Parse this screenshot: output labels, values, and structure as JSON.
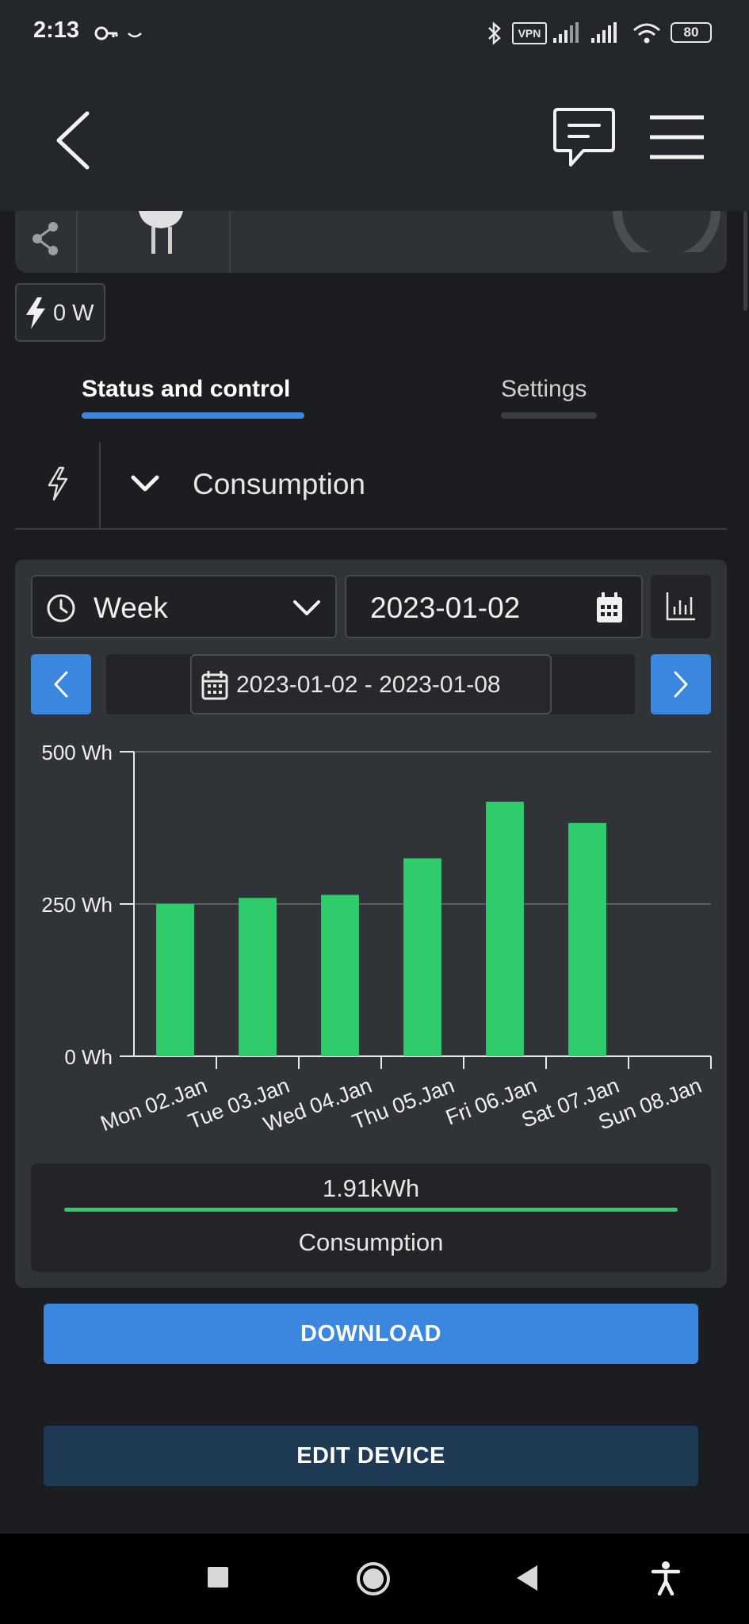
{
  "status_bar": {
    "time": "2:13",
    "vpn_label": "VPN",
    "battery": "80"
  },
  "device": {
    "power_reading": "0 W"
  },
  "tabs": [
    {
      "label": "Status and control",
      "active": true
    },
    {
      "label": "Settings",
      "active": false
    }
  ],
  "section": {
    "title": "Consumption"
  },
  "controls": {
    "period": "Week",
    "date": "2023-01-02",
    "range": "2023-01-02 - 2023-01-08"
  },
  "chart_data": {
    "type": "bar",
    "categories": [
      "Mon 02.Jan",
      "Tue 03.Jan",
      "Wed 04.Jan",
      "Thu 05.Jan",
      "Fri 06.Jan",
      "Sat 07.Jan",
      "Sun 08.Jan"
    ],
    "values": [
      250,
      260,
      265,
      325,
      418,
      383,
      0
    ],
    "ylim": [
      0,
      500
    ],
    "yticks": [
      0,
      250,
      500
    ],
    "ytick_labels": [
      "0 Wh",
      "250 Wh",
      "500 Wh"
    ],
    "grid": true,
    "bar_color": "#2ecc6b"
  },
  "summary": {
    "total": "1.91kWh",
    "label": "Consumption"
  },
  "buttons": {
    "download": "DOWNLOAD",
    "edit": "EDIT DEVICE"
  },
  "colors": {
    "accent": "#3b86df",
    "bars": "#2ecc6b",
    "background": "#1b1d20"
  }
}
